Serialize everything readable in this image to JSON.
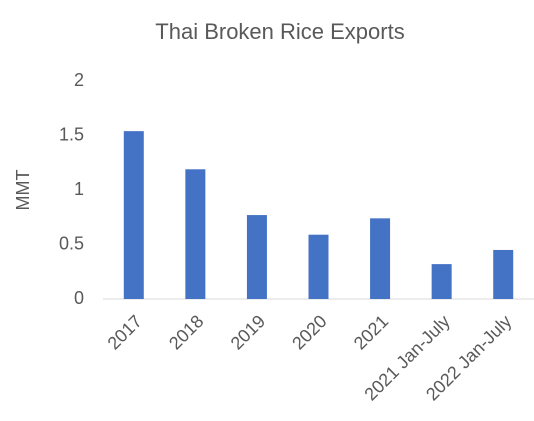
{
  "chart_data": {
    "type": "bar",
    "title": "Thai Broken Rice Exports",
    "y_label": "MMT",
    "categories": [
      "2017",
      "2018",
      "2019",
      "2020",
      "2021",
      "2021 Jan-July",
      "2022 Jan-July"
    ],
    "values": [
      1.54,
      1.19,
      0.77,
      0.59,
      0.74,
      0.32,
      0.45
    ],
    "color": "#4472c4",
    "ylim": [
      0,
      2
    ],
    "yticks": [
      0,
      0.5,
      1,
      1.5,
      2
    ],
    "grid": false
  }
}
